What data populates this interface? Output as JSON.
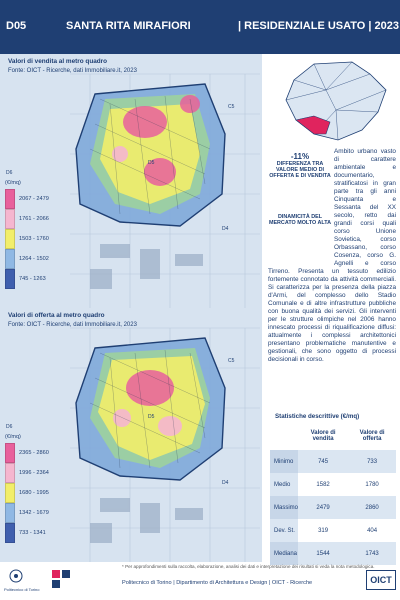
{
  "header": {
    "code": "D05",
    "district": "SANTA RITA MIRAFIORI",
    "type": "| RESIDENZIALE USATO | 2023"
  },
  "map_sale": {
    "title": "Valori di vendita al metro quadro",
    "source": "Fonte: OICT - Ricerche, dati Immobiliare.it, 2023",
    "unit": "(€/mq)",
    "legend": [
      {
        "label": "2067 - 2479",
        "color": "#e8609c"
      },
      {
        "label": "1761 - 2066",
        "color": "#f5b6cf"
      },
      {
        "label": "1503 - 1760",
        "color": "#f2ee6a"
      },
      {
        "label": "1264 - 1502",
        "color": "#8fb8e4"
      },
      {
        "label": "745 - 1263",
        "color": "#3f5fae"
      }
    ],
    "tags": {
      "c5": "C5",
      "d6": "D6",
      "d5": "D5",
      "d4": "D4"
    }
  },
  "map_offer": {
    "title": "Valori di offerta al metro quadro",
    "source": "Fonte: OICT - Ricerche, dati Immobiliare.it, 2023",
    "unit": "(€/mq)",
    "legend": [
      {
        "label": "2365 - 2860",
        "color": "#e8609c"
      },
      {
        "label": "1996 - 2364",
        "color": "#f5b6cf"
      },
      {
        "label": "1680 - 1995",
        "color": "#f2ee6a"
      },
      {
        "label": "1342 - 1679",
        "color": "#8fb8e4"
      },
      {
        "label": "733 - 1341",
        "color": "#3f5fae"
      }
    ],
    "tags": {
      "c5": "C5",
      "d6": "D6",
      "d5": "D5",
      "d4": "D4"
    }
  },
  "highlight": {
    "pct": "-11%",
    "pct_label": "DIFFERENZA TRA VALORE MEDIO DI OFFERTA E DI VENDITA",
    "dynamics": "DINAMICITÀ DEL MERCATO MOLTO ALTA"
  },
  "description": "Ambito urbano vasto di caratte­re ambientale e documentario, stratificatosi in gran parte tra gli anni Cinquanta e Sessanta del XX secolo, retto dai grandi corsi quali corso Unione Sovietica, corso Orbassano, corso Cosenza, corso G. Agnelli e corso Tirreno. Presenta un tessuto edilizio fortemente connotato da attività commerciali. Si caratterizza per la presenza della piazza d'Armi, del complesso dello Stadio Comunale e di altre infrastrutture pubbliche con buona qualità dei servizi. Gli interventi per le strutture olimpiche nel 2006 hanno innescato processi di riqualificazione diffusi: attualmente i complessi architettonici presentano problematiche manutentive e gestionali, che sono oggetto di processi decisionali in corso.",
  "stats": {
    "title": "Statistiche descrittive (€/mq)",
    "col_sale": "Valore di vendita",
    "col_offer": "Valore di offerta",
    "rows": [
      {
        "label": "Minimo",
        "sale": "745",
        "offer": "733"
      },
      {
        "label": "Medio",
        "sale": "1582",
        "offer": "1780"
      },
      {
        "label": "Massimo",
        "sale": "2479",
        "offer": "2860"
      },
      {
        "label": "Dev. St.",
        "sale": "319",
        "offer": "404"
      },
      {
        "label": "Mediana",
        "sale": "1544",
        "offer": "1743"
      }
    ]
  },
  "footer": {
    "note": "* Per approfondimenti sulla raccolta, elaborazione, analisi dei dati e interpretazione dei risultati si veda la nota metodologica.",
    "line": "Politecnico di Torino | Dipartimento di Architettura e Design | OICT - Ricerche",
    "polito": "Politecnico di Torino",
    "oict": "OICT"
  }
}
